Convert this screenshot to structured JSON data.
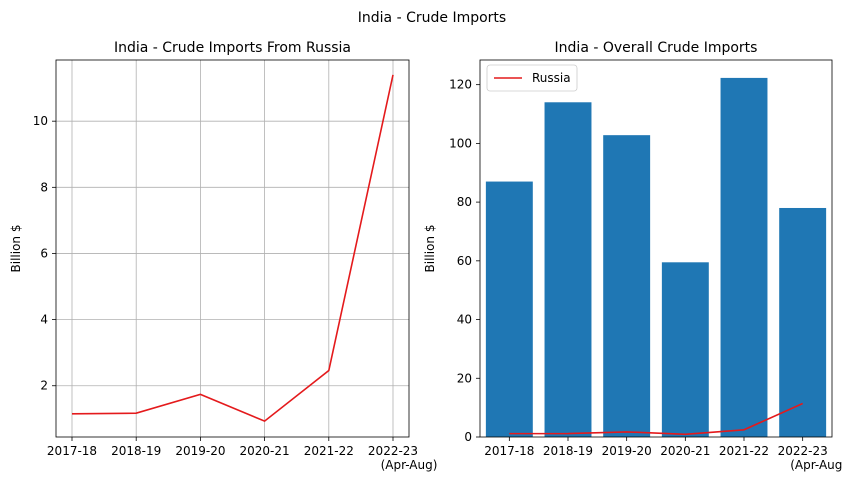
{
  "suptitle": "India - Crude Imports",
  "chart_data": [
    {
      "type": "line",
      "title": "India - Crude Imports From Russia",
      "xlabel": "",
      "ylabel": "Billion $",
      "categories": [
        "2017-18",
        "2018-19",
        "2019-20",
        "2020-21",
        "2021-22",
        "2022-23\n(Apr-Aug)"
      ],
      "series": [
        {
          "values": [
            1.15,
            1.17,
            1.74,
            0.93,
            2.46,
            11.4
          ],
          "color": "#e41a1c"
        }
      ],
      "ylim": [
        0.45,
        11.85
      ],
      "yticks": [
        2,
        4,
        6,
        8,
        10
      ],
      "ytick_labels": [
        "2",
        "4",
        "6",
        "8",
        "10"
      ],
      "grid": true
    },
    {
      "type": "bar",
      "title": "India - Overall Crude Imports",
      "xlabel": "",
      "ylabel": "Billion $",
      "categories": [
        "2017-18",
        "2018-19",
        "2019-20",
        "2020-21",
        "2021-22",
        "2022-23\n(Apr-Aug)"
      ],
      "series": [
        {
          "values": [
            87.0,
            114.0,
            102.8,
            59.5,
            122.3,
            78.0
          ],
          "color": "#1f77b4"
        },
        {
          "name": "Russia",
          "type": "line",
          "values": [
            1.15,
            1.17,
            1.74,
            0.93,
            2.46,
            11.4
          ],
          "color": "#e41a1c"
        }
      ],
      "ylim": [
        0,
        128.4
      ],
      "yticks": [
        0,
        20,
        40,
        60,
        80,
        100,
        120
      ],
      "ytick_labels": [
        "0",
        "20",
        "40",
        "60",
        "80",
        "100",
        "120"
      ],
      "grid": false,
      "legend": "top-left"
    }
  ]
}
